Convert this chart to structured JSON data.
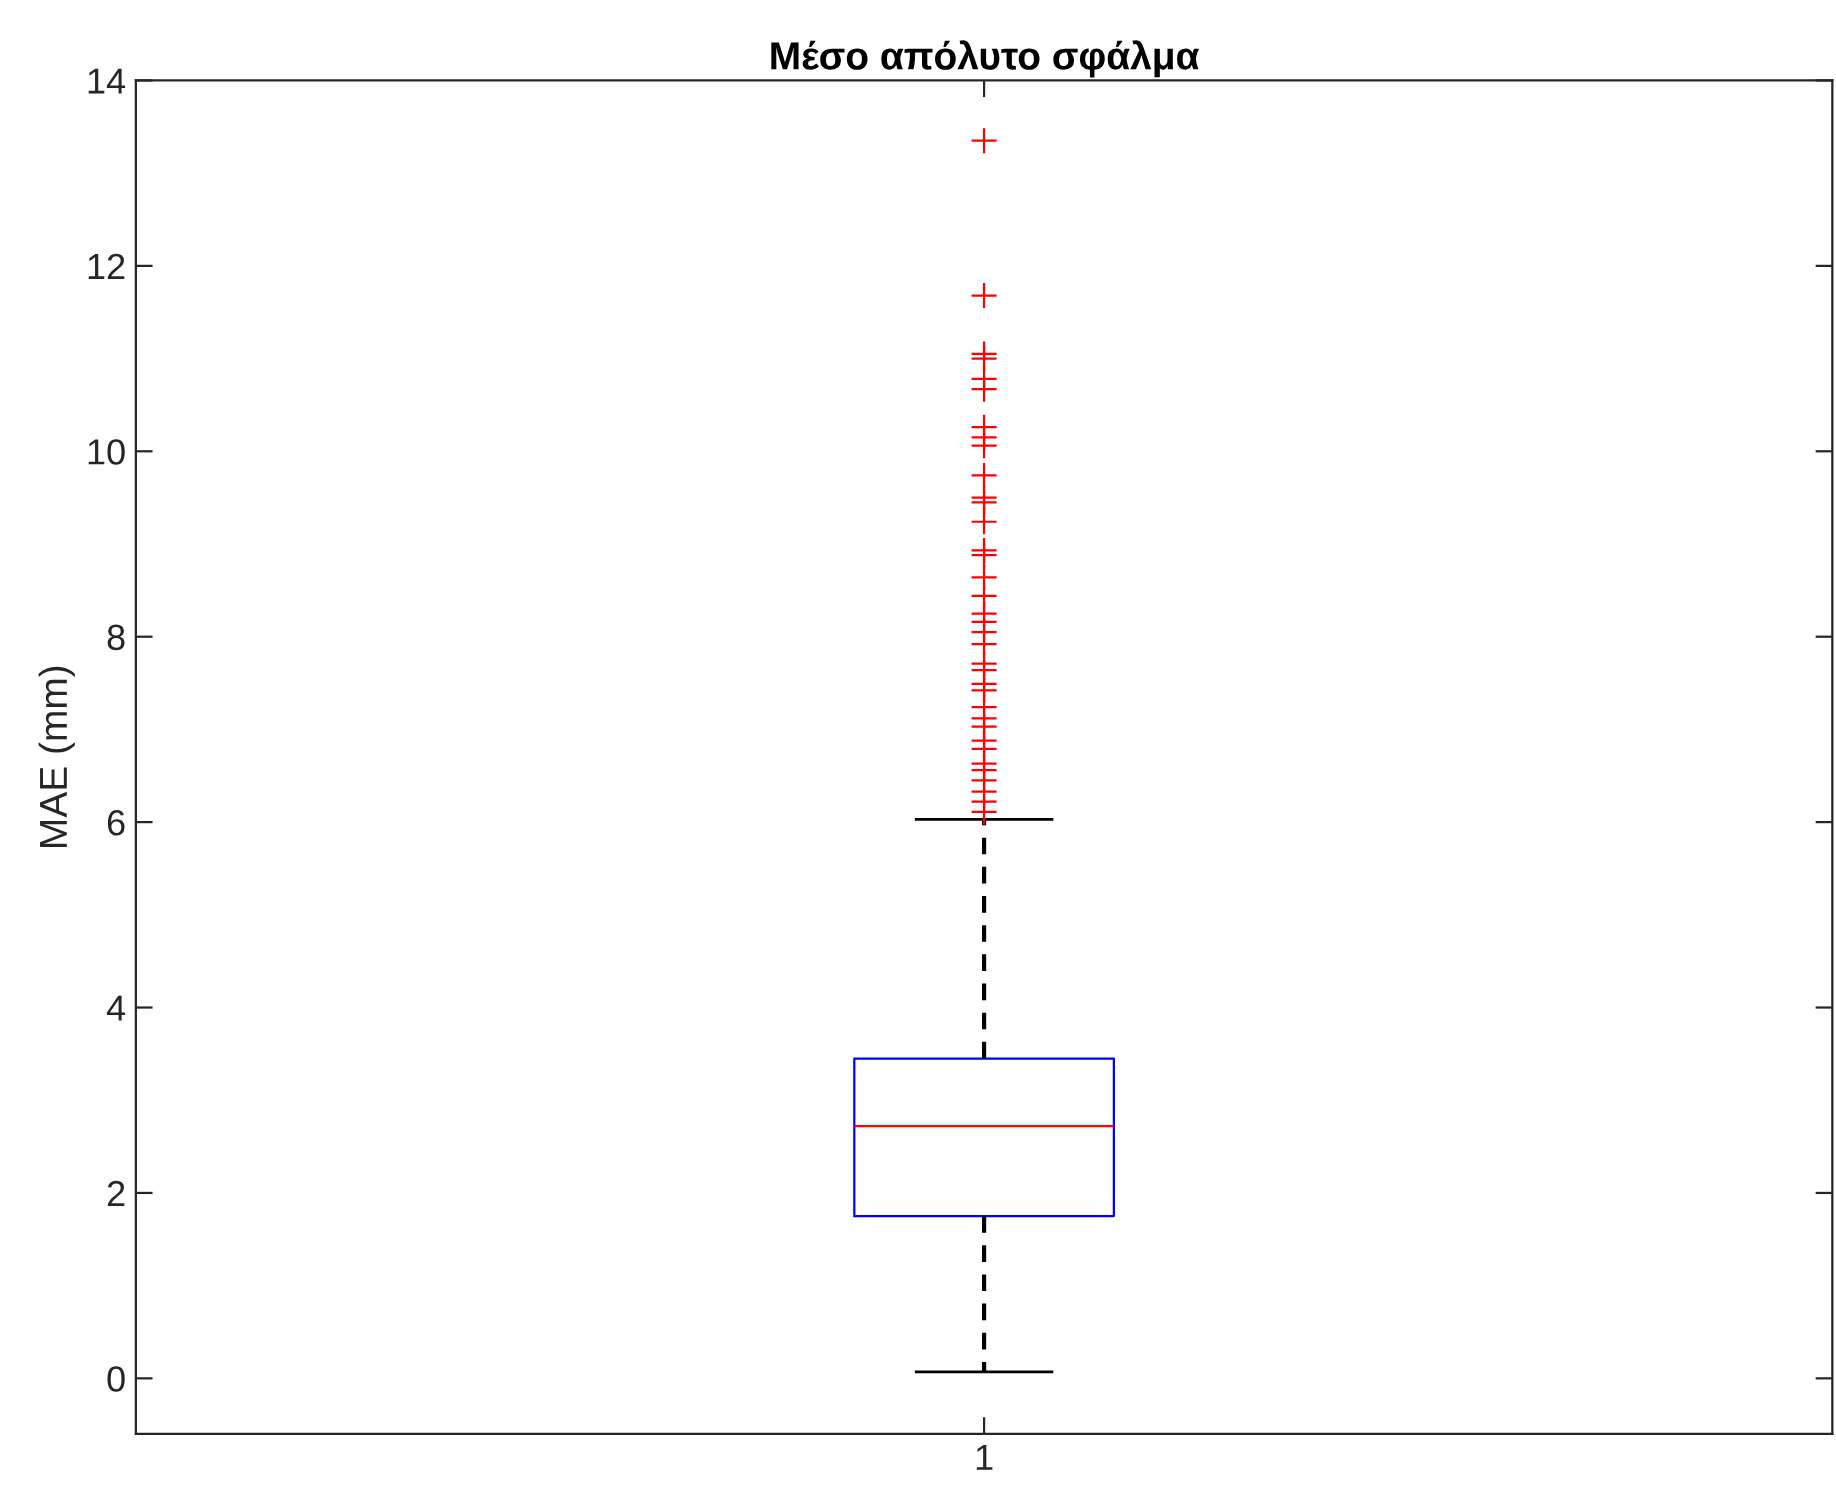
{
  "chart_data": {
    "type": "box",
    "title": "Μέσο απόλυτο σφάλμα",
    "ylabel": "MAE (mm)",
    "categories": [
      "1"
    ],
    "boxes": [
      {
        "low": 0.07,
        "q1": 1.75,
        "median": 2.72,
        "q3": 3.45,
        "high": 6.03,
        "outliers": [
          13.35,
          11.68,
          11.05,
          11.0,
          10.78,
          10.67,
          10.26,
          10.15,
          10.06,
          9.74,
          9.5,
          9.45,
          9.24,
          8.93,
          8.88,
          8.64,
          8.44,
          8.25,
          8.16,
          8.05,
          7.92,
          7.71,
          7.64,
          7.49,
          7.42,
          7.24,
          7.12,
          7.03,
          6.88,
          6.79,
          6.63,
          6.56,
          6.45,
          6.33,
          6.22,
          6.11
        ]
      }
    ],
    "ylim": [
      -0.6,
      14
    ],
    "yticks": [
      0,
      2,
      4,
      6,
      8,
      10,
      12,
      14
    ],
    "grid": false,
    "marker": "cross"
  }
}
